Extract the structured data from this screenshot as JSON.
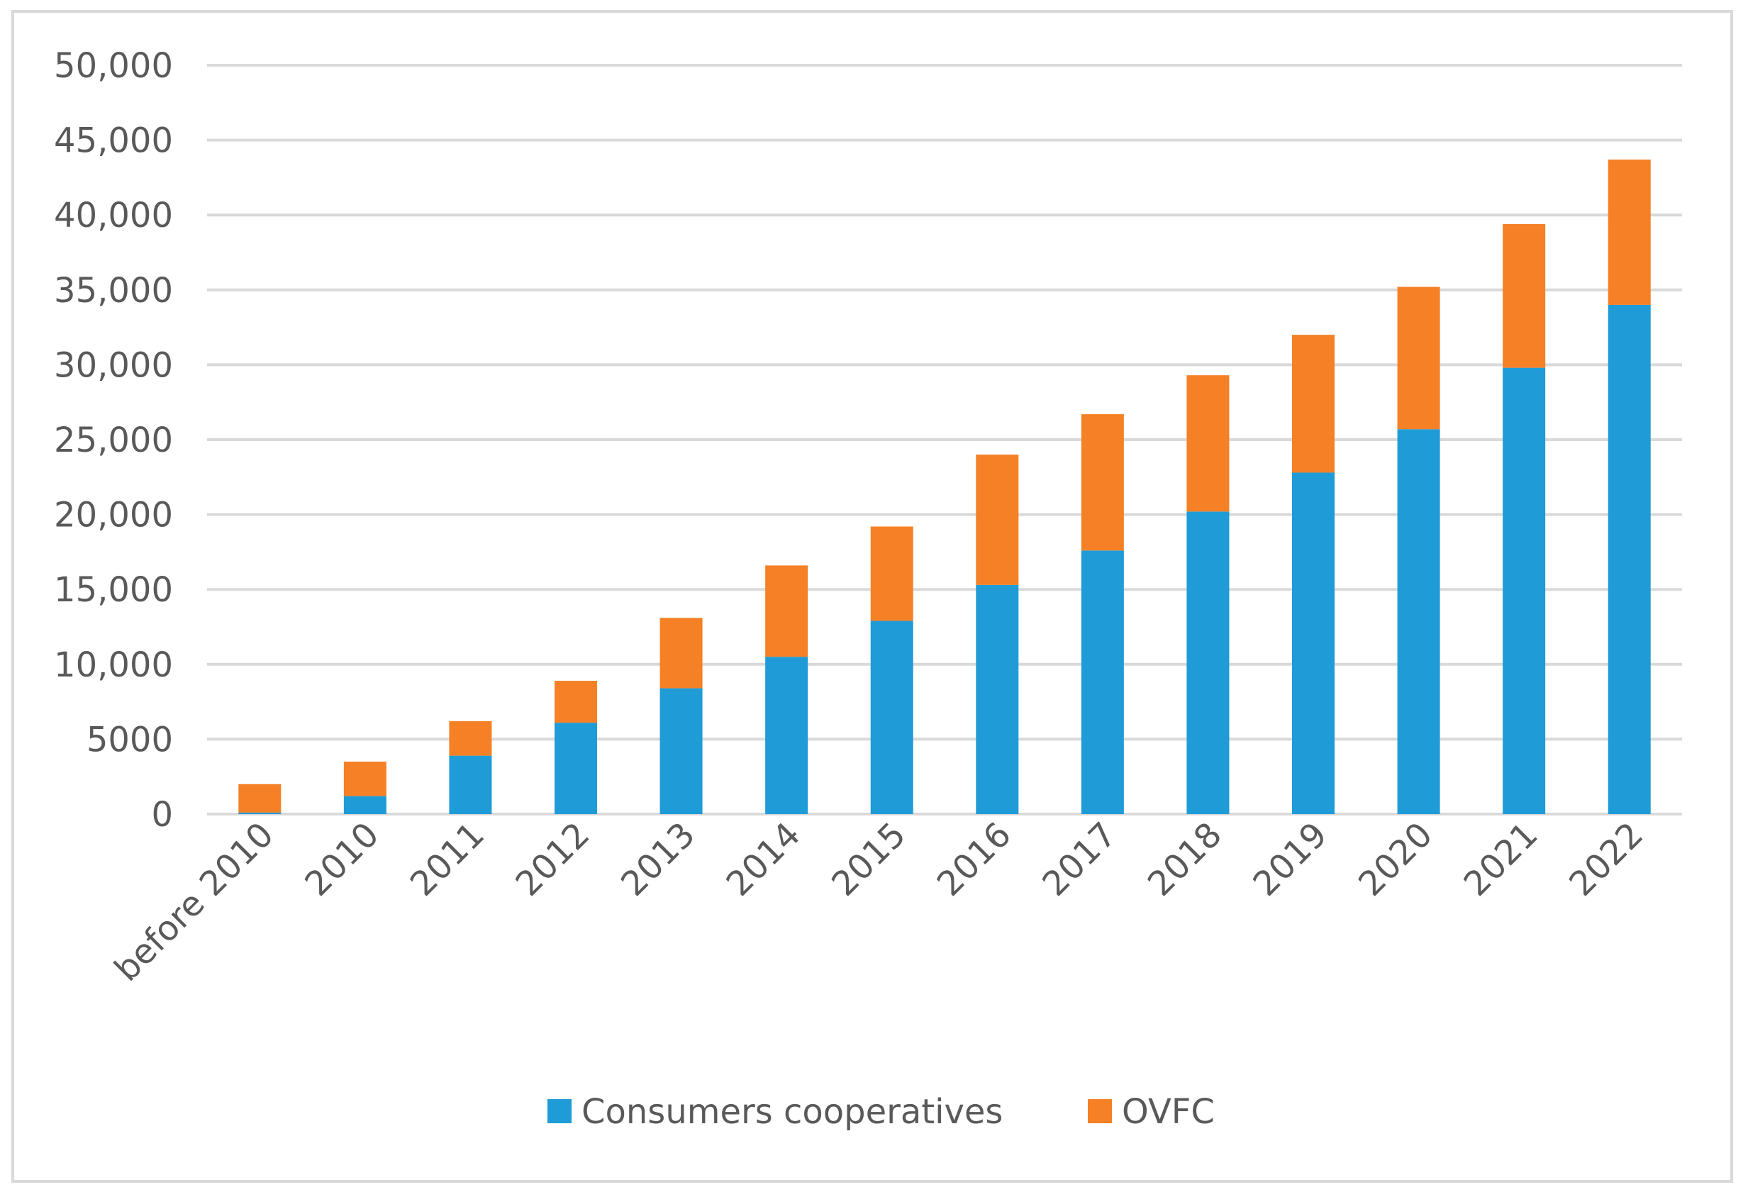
{
  "chart_data": {
    "type": "bar",
    "stacked": true,
    "title": "",
    "xlabel": "",
    "ylabel": "",
    "ylim": [
      0,
      50000
    ],
    "y_ticks": [
      {
        "value": 0,
        "label": "0"
      },
      {
        "value": 5000,
        "label": "5000"
      },
      {
        "value": 10000,
        "label": "10,000"
      },
      {
        "value": 15000,
        "label": "15,000"
      },
      {
        "value": 20000,
        "label": "20,000"
      },
      {
        "value": 25000,
        "label": "25,000"
      },
      {
        "value": 30000,
        "label": "30,000"
      },
      {
        "value": 35000,
        "label": "35,000"
      },
      {
        "value": 40000,
        "label": "40,000"
      },
      {
        "value": 45000,
        "label": "45,000"
      },
      {
        "value": 50000,
        "label": "50,000"
      }
    ],
    "grid": true,
    "legend_position": "bottom",
    "categories": [
      "before 2010",
      "2010",
      "2011",
      "2012",
      "2013",
      "2014",
      "2015",
      "2016",
      "2017",
      "2018",
      "2019",
      "2020",
      "2021",
      "2022"
    ],
    "series": [
      {
        "name": "Consumers cooperatives",
        "color": "#1f9bd7",
        "values": [
          100,
          1200,
          3900,
          6100,
          8400,
          10500,
          12900,
          15300,
          17600,
          20200,
          22800,
          25700,
          29800,
          34000
        ]
      },
      {
        "name": "OVFC",
        "color": "#f58025",
        "values": [
          1900,
          2300,
          2300,
          2800,
          4700,
          6100,
          6300,
          8700,
          9100,
          9100,
          9200,
          9500,
          9600,
          9700
        ]
      }
    ]
  }
}
